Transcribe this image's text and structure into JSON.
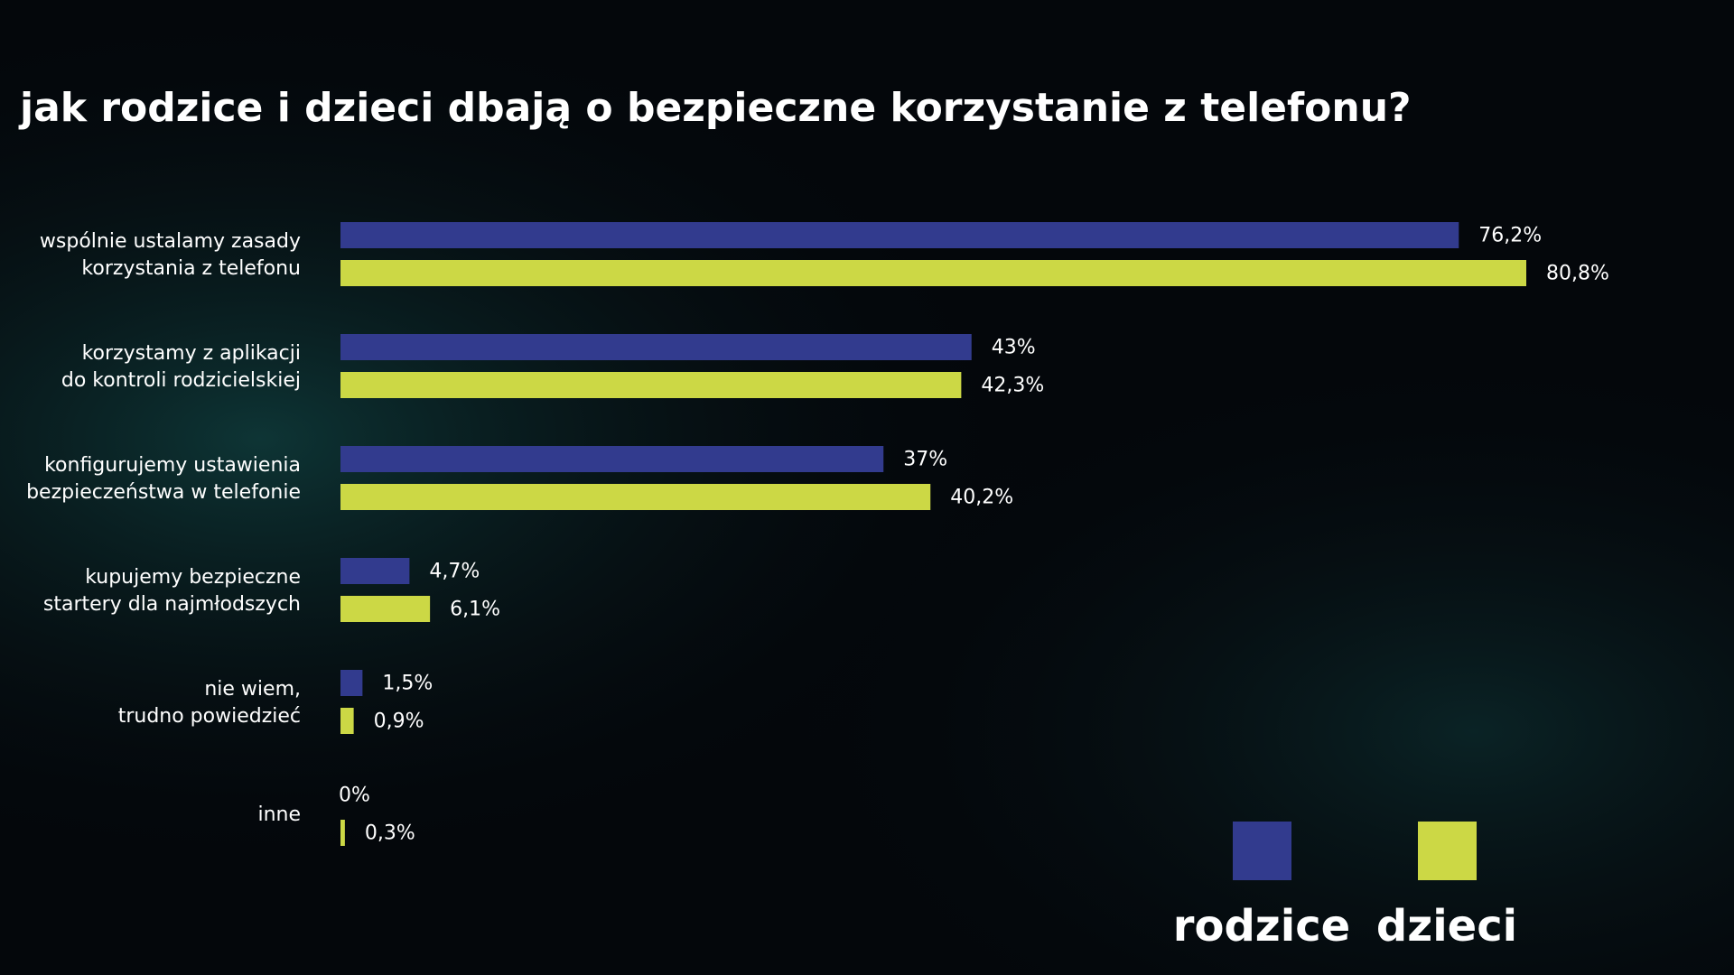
{
  "chart_data": {
    "type": "hbar",
    "title": "jak rodzice i dzieci dbają o bezpieczne korzystanie z telefonu?",
    "categories": [
      "wspólnie ustalamy zasady\nkorzystania z telefonu",
      "korzystamy z aplikacji\ndo kontroli rodzicielskiej",
      "konfigurujemy ustawienia\nbezpieczeństwa w telefonie",
      "kupujemy bezpieczne\nstartery dla najmłodszych",
      "nie wiem,\ntrudno powiedzieć",
      "inne"
    ],
    "series": [
      {
        "name": "rodzice",
        "color": "#323b8e",
        "values": [
          76.2,
          43,
          37,
          4.7,
          1.5,
          0
        ],
        "value_labels": [
          "76,2%",
          "43%",
          "37%",
          "4,7%",
          "1,5%",
          "0%"
        ]
      },
      {
        "name": "dzieci",
        "color": "#ccd845",
        "values": [
          80.8,
          42.3,
          40.2,
          6.1,
          0.9,
          0.3
        ],
        "value_labels": [
          "80,8%",
          "42,3%",
          "40,2%",
          "6,1%",
          "0,9%",
          "0,3%"
        ]
      }
    ]
  }
}
